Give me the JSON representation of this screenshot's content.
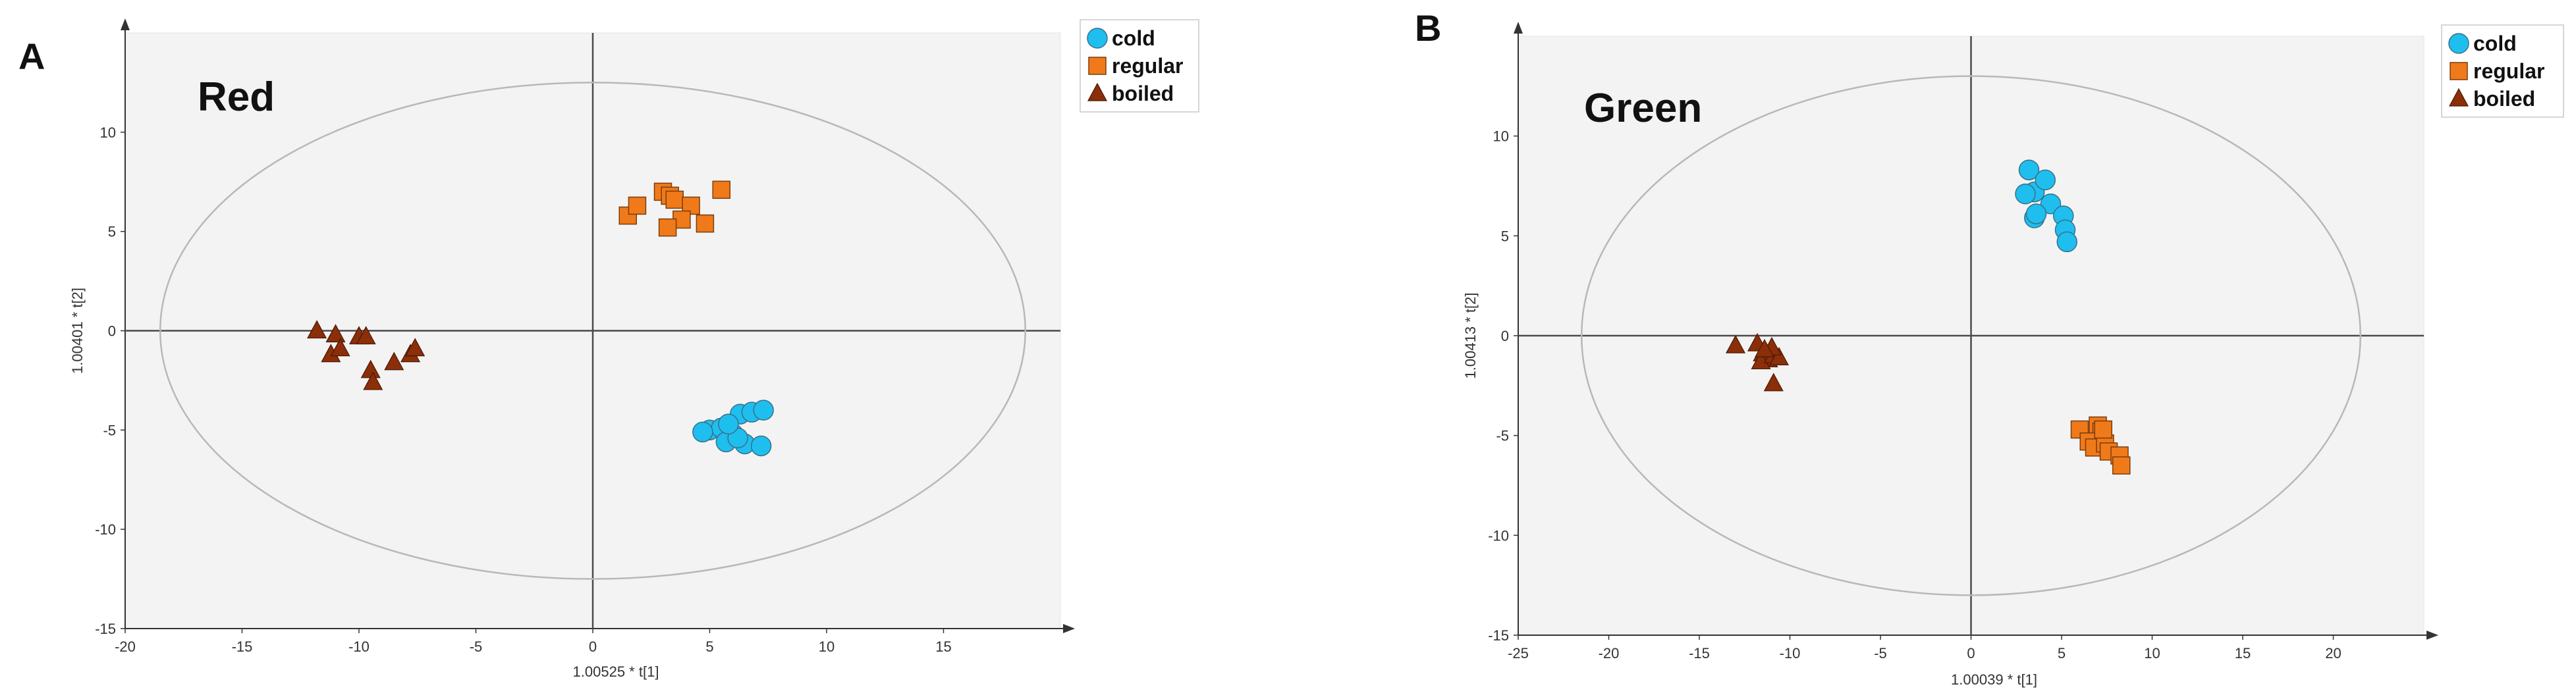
{
  "chart_data": [
    {
      "type": "scatter",
      "panel_label": "A",
      "title": "Red",
      "xlabel": "1.00525 * t[1]",
      "ylabel": "1.00401 * t[2]",
      "xlim": [
        -20,
        20
      ],
      "ylim": [
        -15,
        15
      ],
      "xticks": [
        -20,
        -15,
        -10,
        -5,
        0,
        5,
        10,
        15
      ],
      "yticks": [
        -15,
        -10,
        -5,
        0,
        5,
        10
      ],
      "ellipse": {
        "rx": 18.5,
        "ry": 12.5
      },
      "legend": "top-right",
      "series": [
        {
          "name": "cold",
          "marker": "circle",
          "color": "#1EBFEF",
          "points": [
            [
              5,
              -5
            ],
            [
              5.5,
              -4.9
            ],
            [
              6,
              -5.2
            ],
            [
              6.3,
              -4.2
            ],
            [
              6.8,
              -4.1
            ],
            [
              7.3,
              -4
            ],
            [
              5.7,
              -5.6
            ],
            [
              6.5,
              -5.7
            ],
            [
              7.2,
              -5.8
            ],
            [
              6.2,
              -5.4
            ],
            [
              5.8,
              -4.7
            ],
            [
              4.7,
              -5.1
            ]
          ]
        },
        {
          "name": "regular",
          "marker": "square",
          "color": "#F07A1A",
          "points": [
            [
              1.5,
              5.8
            ],
            [
              1.9,
              6.3
            ],
            [
              3,
              7
            ],
            [
              3.3,
              6.8
            ],
            [
              3.5,
              6.6
            ],
            [
              4.2,
              6.3
            ],
            [
              3.8,
              5.6
            ],
            [
              3.2,
              5.2
            ],
            [
              4.8,
              5.4
            ],
            [
              5.5,
              7.1
            ]
          ]
        },
        {
          "name": "boiled",
          "marker": "triangle",
          "color": "#8B2E0A",
          "points": [
            [
              -11.8,
              0
            ],
            [
              -11,
              -0.2
            ],
            [
              -11.2,
              -1.2
            ],
            [
              -10.8,
              -0.9
            ],
            [
              -10,
              -0.3
            ],
            [
              -9.7,
              -0.3
            ],
            [
              -9.5,
              -2
            ],
            [
              -9.4,
              -2.6
            ],
            [
              -8.5,
              -1.6
            ],
            [
              -7.8,
              -1.2
            ],
            [
              -7.6,
              -0.9
            ]
          ]
        }
      ]
    },
    {
      "type": "scatter",
      "panel_label": "B",
      "title": "Green",
      "xlabel": "1.00039 * t[1]",
      "ylabel": "1.00413 * t[2]",
      "xlim": [
        -25,
        25
      ],
      "ylim": [
        -15,
        15
      ],
      "xticks": [
        -25,
        -20,
        -15,
        -10,
        -5,
        0,
        5,
        10,
        15,
        20
      ],
      "yticks": [
        -15,
        -10,
        -5,
        0,
        5,
        10
      ],
      "ellipse": {
        "rx": 21.5,
        "ry": 13
      },
      "legend": "top-right",
      "series": [
        {
          "name": "cold",
          "marker": "circle",
          "color": "#1EBFEF",
          "points": [
            [
              3.2,
              8.3
            ],
            [
              3.5,
              7.2
            ],
            [
              3,
              7.1
            ],
            [
              4.1,
              7.8
            ],
            [
              4.4,
              6.6
            ],
            [
              3.5,
              5.9
            ],
            [
              3.6,
              6.1
            ],
            [
              5.1,
              6
            ],
            [
              5.2,
              5.3
            ],
            [
              5.3,
              4.7
            ]
          ]
        },
        {
          "name": "regular",
          "marker": "square",
          "color": "#F07A1A",
          "points": [
            [
              6,
              -4.7
            ],
            [
              7,
              -4.5
            ],
            [
              7.2,
              -4.8
            ],
            [
              6.5,
              -5.3
            ],
            [
              6.8,
              -5.6
            ],
            [
              7.4,
              -5.4
            ],
            [
              7.6,
              -5.8
            ],
            [
              8.2,
              -6
            ],
            [
              7.3,
              -4.7
            ],
            [
              8.3,
              -6.5
            ]
          ]
        },
        {
          "name": "boiled",
          "marker": "triangle",
          "color": "#8B2E0A",
          "points": [
            [
              -13,
              -0.5
            ],
            [
              -11.8,
              -0.4
            ],
            [
              -11.5,
              -0.9
            ],
            [
              -11.2,
              -1.2
            ],
            [
              -11.6,
              -1.3
            ],
            [
              -10.9,
              -1
            ],
            [
              -10.6,
              -1.1
            ],
            [
              -11,
              -0.6
            ],
            [
              -10.9,
              -2.4
            ],
            [
              -11.4,
              -0.7
            ]
          ]
        }
      ]
    }
  ]
}
